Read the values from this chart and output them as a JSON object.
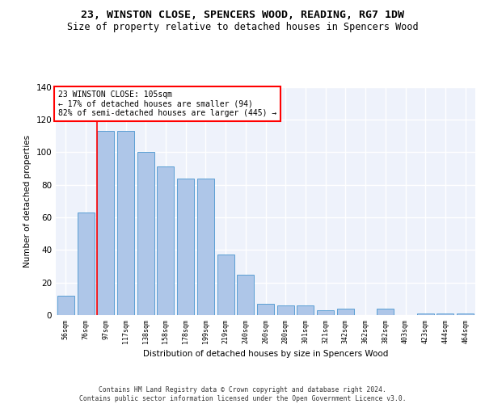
{
  "title": "23, WINSTON CLOSE, SPENCERS WOOD, READING, RG7 1DW",
  "subtitle": "Size of property relative to detached houses in Spencers Wood",
  "xlabel": "Distribution of detached houses by size in Spencers Wood",
  "ylabel": "Number of detached properties",
  "categories": [
    "56sqm",
    "76sqm",
    "97sqm",
    "117sqm",
    "138sqm",
    "158sqm",
    "178sqm",
    "199sqm",
    "219sqm",
    "240sqm",
    "260sqm",
    "280sqm",
    "301sqm",
    "321sqm",
    "342sqm",
    "362sqm",
    "382sqm",
    "403sqm",
    "423sqm",
    "444sqm",
    "464sqm"
  ],
  "values": [
    12,
    63,
    113,
    113,
    100,
    91,
    84,
    84,
    37,
    25,
    7,
    6,
    6,
    3,
    4,
    0,
    4,
    0,
    1,
    1,
    1
  ],
  "bar_color": "#aec6e8",
  "bar_edge_color": "#5a9fd4",
  "ref_line_color": "red",
  "annotation_text": "23 WINSTON CLOSE: 105sqm\n← 17% of detached houses are smaller (94)\n82% of semi-detached houses are larger (445) →",
  "annotation_box_color": "white",
  "annotation_box_edge_color": "red",
  "ylim": [
    0,
    140
  ],
  "yticks": [
    0,
    20,
    40,
    60,
    80,
    100,
    120,
    140
  ],
  "footer": "Contains HM Land Registry data © Crown copyright and database right 2024.\nContains public sector information licensed under the Open Government Licence v3.0.",
  "background_color": "#eef2fb",
  "title_fontsize": 9.5,
  "subtitle_fontsize": 8.5
}
